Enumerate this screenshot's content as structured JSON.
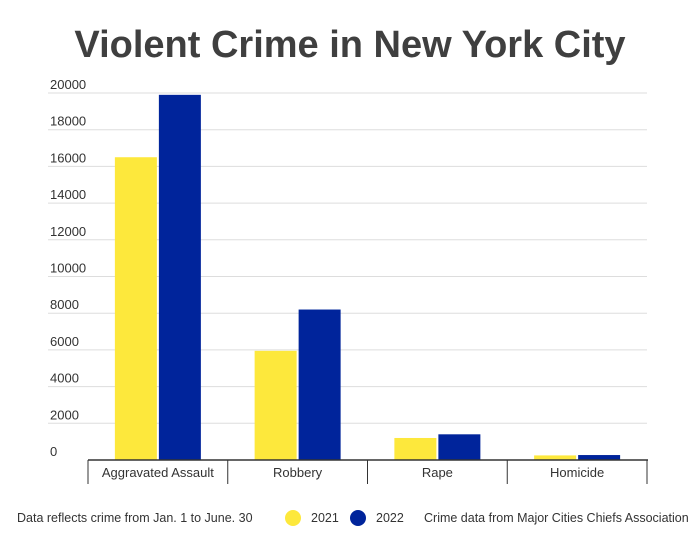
{
  "chart_data": {
    "type": "bar",
    "title": "Violent Crime in New York City",
    "categories": [
      "Aggravated Assault",
      "Robbery",
      "Rape",
      "Homicide"
    ],
    "series": [
      {
        "name": "2021",
        "color": "#fde83c",
        "values": [
          16500,
          5950,
          1200,
          250
        ]
      },
      {
        "name": "2022",
        "color": "#00249b",
        "values": [
          19900,
          8200,
          1400,
          270
        ]
      }
    ],
    "ylim": [
      0,
      20000
    ],
    "yticks": [
      "0",
      "2000",
      "4000",
      "6000",
      "8000",
      "10000",
      "12000",
      "14000",
      "16000",
      "18000",
      "20000"
    ],
    "grid": true,
    "legend_position": "bottom"
  },
  "footer": {
    "left_note": "Data reflects crime from Jan. 1 to June. 30",
    "right_note": "Crime data from Major Cities Chiefs Association"
  }
}
